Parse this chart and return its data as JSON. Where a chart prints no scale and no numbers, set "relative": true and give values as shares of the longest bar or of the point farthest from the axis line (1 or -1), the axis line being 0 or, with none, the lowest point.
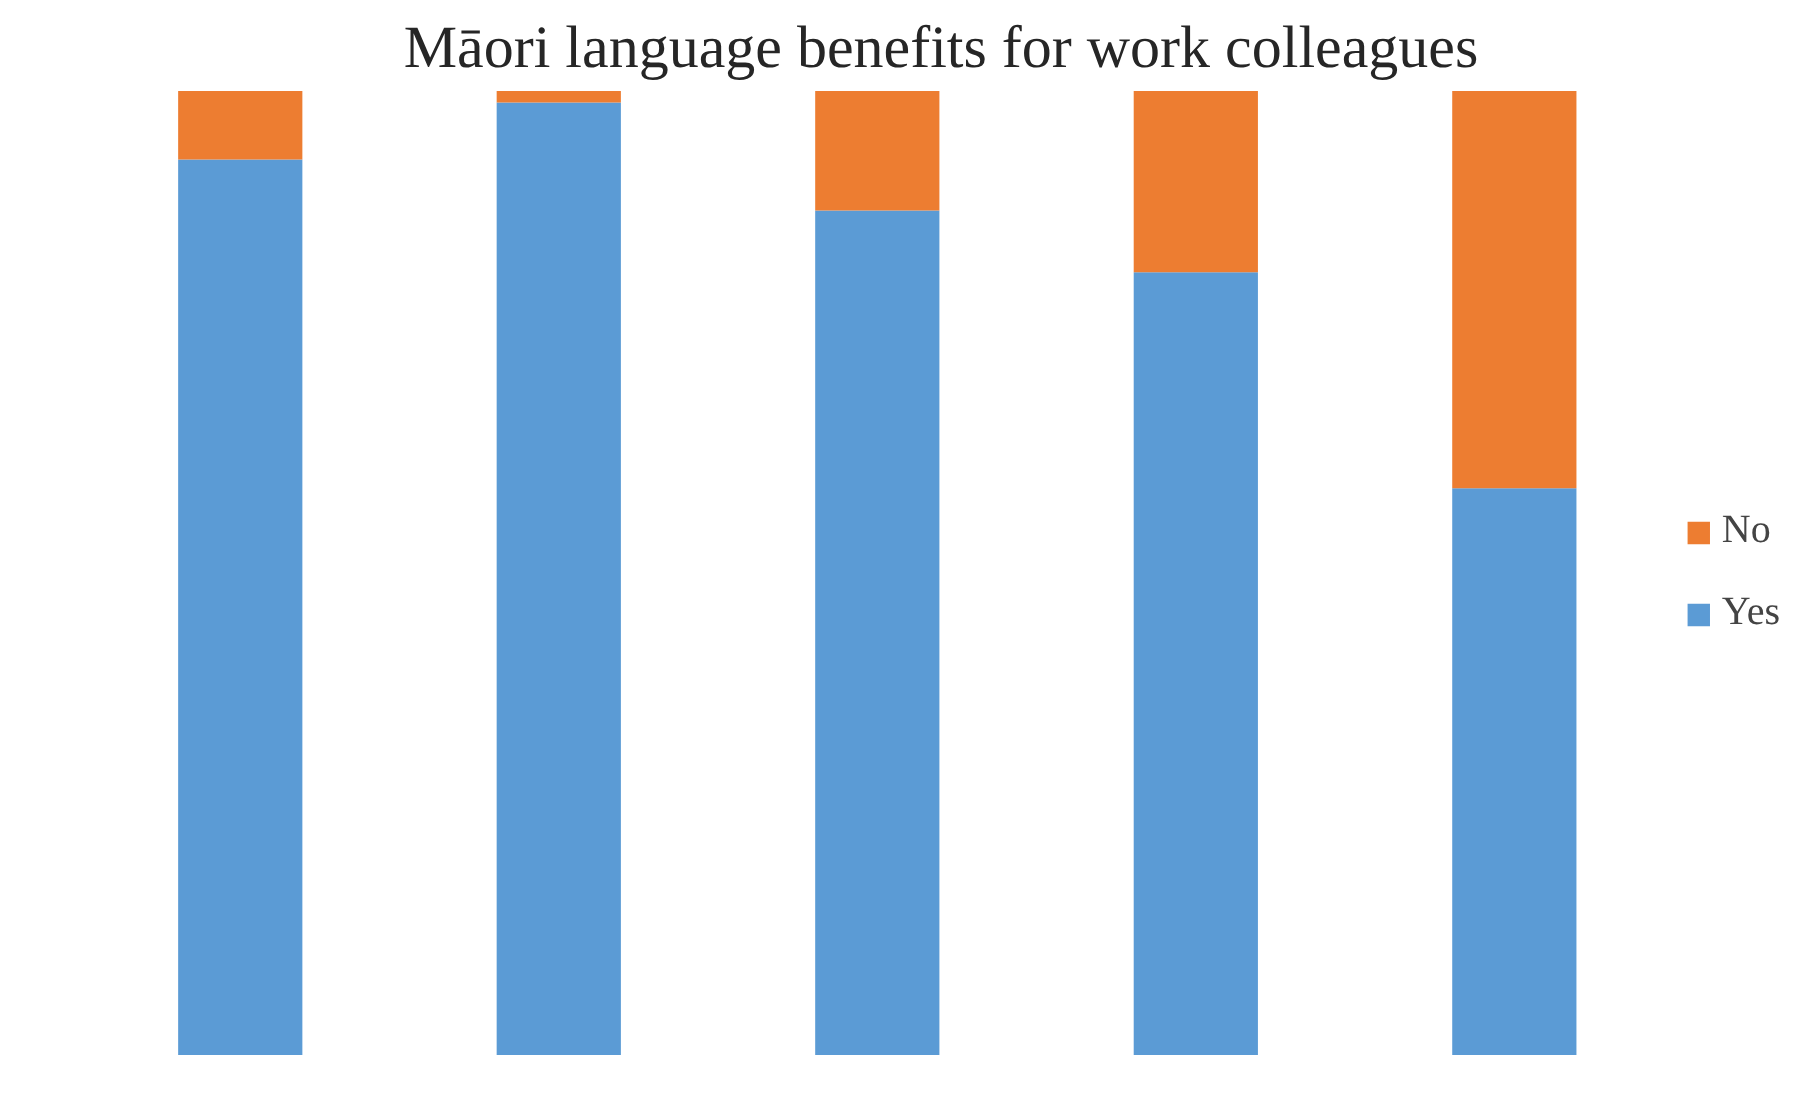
{
  "chart_data": {
    "type": "bar",
    "title": "Māori language benefits for work colleagues",
    "categories": [
      null,
      null,
      null,
      null,
      null
    ],
    "stacked": true,
    "relative": true,
    "legend": "right",
    "grid": false,
    "series": [
      {
        "name": "Yes",
        "color": "#5b9bd5",
        "values": [
          0.929,
          0.988,
          0.876,
          0.812,
          0.588
        ]
      },
      {
        "name": "No",
        "color": "#ed7d31",
        "values": [
          0.071,
          0.012,
          0.124,
          0.188,
          0.412
        ]
      }
    ]
  }
}
